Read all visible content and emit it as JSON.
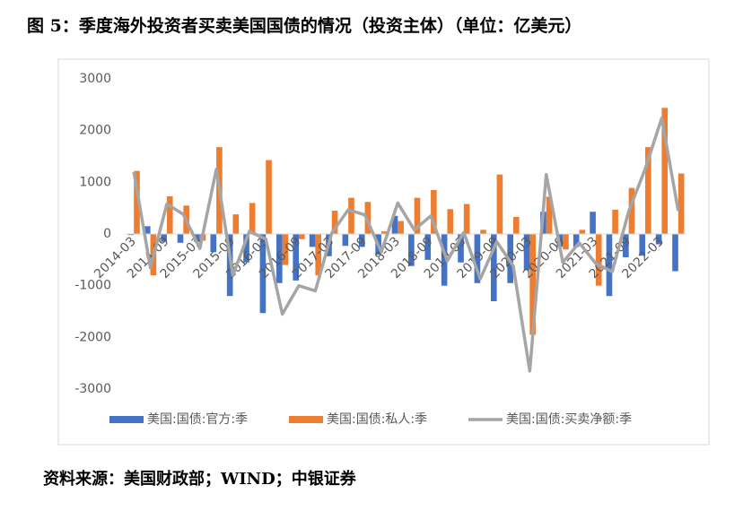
{
  "chart_data": {
    "type": "bar-line",
    "title": "图 5：季度海外投资者买卖美国国债的情况（投资主体）（单位：亿美元）",
    "source": "资料来源：美国财政部；WIND；中银证券",
    "categories": [
      "2014-03",
      null,
      "2014-09",
      null,
      "2015-03",
      null,
      "2015-09",
      null,
      "2016-03",
      null,
      "2016-09",
      null,
      "2017-03",
      null,
      "2017-09",
      null,
      "2018-03",
      null,
      "2018-09",
      null,
      "2019-03",
      null,
      "2019-09",
      null,
      "2020-03",
      null,
      "2020-09",
      null,
      "2021-03",
      null,
      "2021-09",
      null,
      "2022-03",
      null
    ],
    "series": [
      {
        "name": "美国:国债:官方:季",
        "type": "bar",
        "color": "#4472c4",
        "values": [
          -20,
          150,
          -150,
          -170,
          -150,
          -350,
          -1200,
          -550,
          -1530,
          -950,
          -900,
          -250,
          -430,
          -230,
          -250,
          -400,
          350,
          -620,
          -500,
          -1000,
          -550,
          -950,
          -1300,
          -950,
          -700,
          430,
          -250,
          -250,
          430,
          -1200,
          -450,
          -420,
          -200,
          -720
        ]
      },
      {
        "name": "美国:国债:私人:季",
        "type": "bar",
        "color": "#ed7d31",
        "values": [
          1220,
          -800,
          730,
          550,
          -130,
          1680,
          380,
          600,
          1430,
          -600,
          -100,
          -800,
          450,
          700,
          620,
          50,
          250,
          700,
          850,
          480,
          580,
          80,
          1150,
          330,
          -1950,
          720,
          -300,
          80,
          -1000,
          470,
          890,
          1680,
          2440,
          1170
        ]
      },
      {
        "name": "美国:国债:买卖净额:季",
        "type": "line",
        "color": "#a5a5a5",
        "values": [
          1200,
          -650,
          580,
          380,
          -280,
          1250,
          -800,
          50,
          -100,
          -1550,
          -1000,
          -1100,
          20,
          470,
          370,
          -350,
          600,
          80,
          350,
          -520,
          30,
          -870,
          -150,
          -620,
          -2650,
          1150,
          -550,
          -170,
          -570,
          -730,
          440,
          1260,
          2240,
          450
        ]
      }
    ],
    "ylim": [
      -3000,
      3000
    ],
    "yticks": [
      3000,
      2000,
      1000,
      0,
      -1000,
      -2000,
      -3000
    ],
    "grid": false,
    "legend": "bottom"
  }
}
